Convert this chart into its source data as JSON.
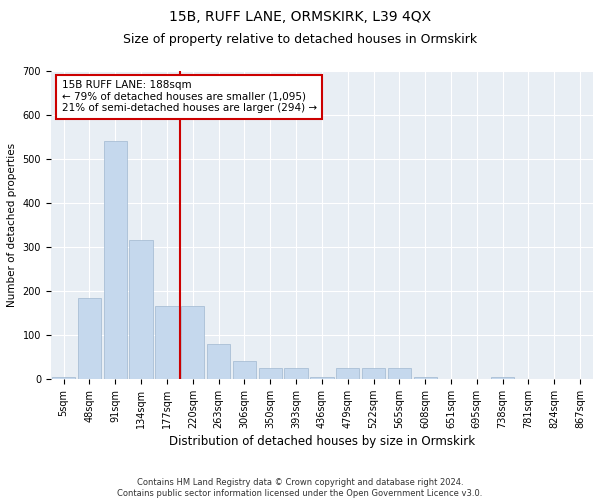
{
  "title1": "15B, RUFF LANE, ORMSKIRK, L39 4QX",
  "title2": "Size of property relative to detached houses in Ormskirk",
  "xlabel": "Distribution of detached houses by size in Ormskirk",
  "ylabel": "Number of detached properties",
  "footnote": "Contains HM Land Registry data © Crown copyright and database right 2024.\nContains public sector information licensed under the Open Government Licence v3.0.",
  "categories": [
    "5sqm",
    "48sqm",
    "91sqm",
    "134sqm",
    "177sqm",
    "220sqm",
    "263sqm",
    "306sqm",
    "350sqm",
    "393sqm",
    "436sqm",
    "479sqm",
    "522sqm",
    "565sqm",
    "608sqm",
    "651sqm",
    "695sqm",
    "738sqm",
    "781sqm",
    "824sqm",
    "867sqm"
  ],
  "values": [
    5,
    185,
    540,
    315,
    165,
    165,
    80,
    40,
    25,
    25,
    5,
    25,
    25,
    25,
    5,
    0,
    0,
    5,
    0,
    0,
    0
  ],
  "bar_color": "#c5d8ed",
  "bar_edge_color": "#a0b8d0",
  "red_line_index": 4.5,
  "annotation_text": "15B RUFF LANE: 188sqm\n← 79% of detached houses are smaller (1,095)\n21% of semi-detached houses are larger (294) →",
  "annotation_box_color": "white",
  "annotation_box_edge": "#cc0000",
  "red_line_color": "#cc0000",
  "ylim": [
    0,
    700
  ],
  "yticks": [
    0,
    100,
    200,
    300,
    400,
    500,
    600,
    700
  ],
  "bg_color": "#e8eef4",
  "title1_fontsize": 10,
  "title2_fontsize": 9,
  "xlabel_fontsize": 8.5,
  "ylabel_fontsize": 7.5,
  "tick_fontsize": 7,
  "annotation_fontsize": 7.5,
  "footnote_fontsize": 6
}
